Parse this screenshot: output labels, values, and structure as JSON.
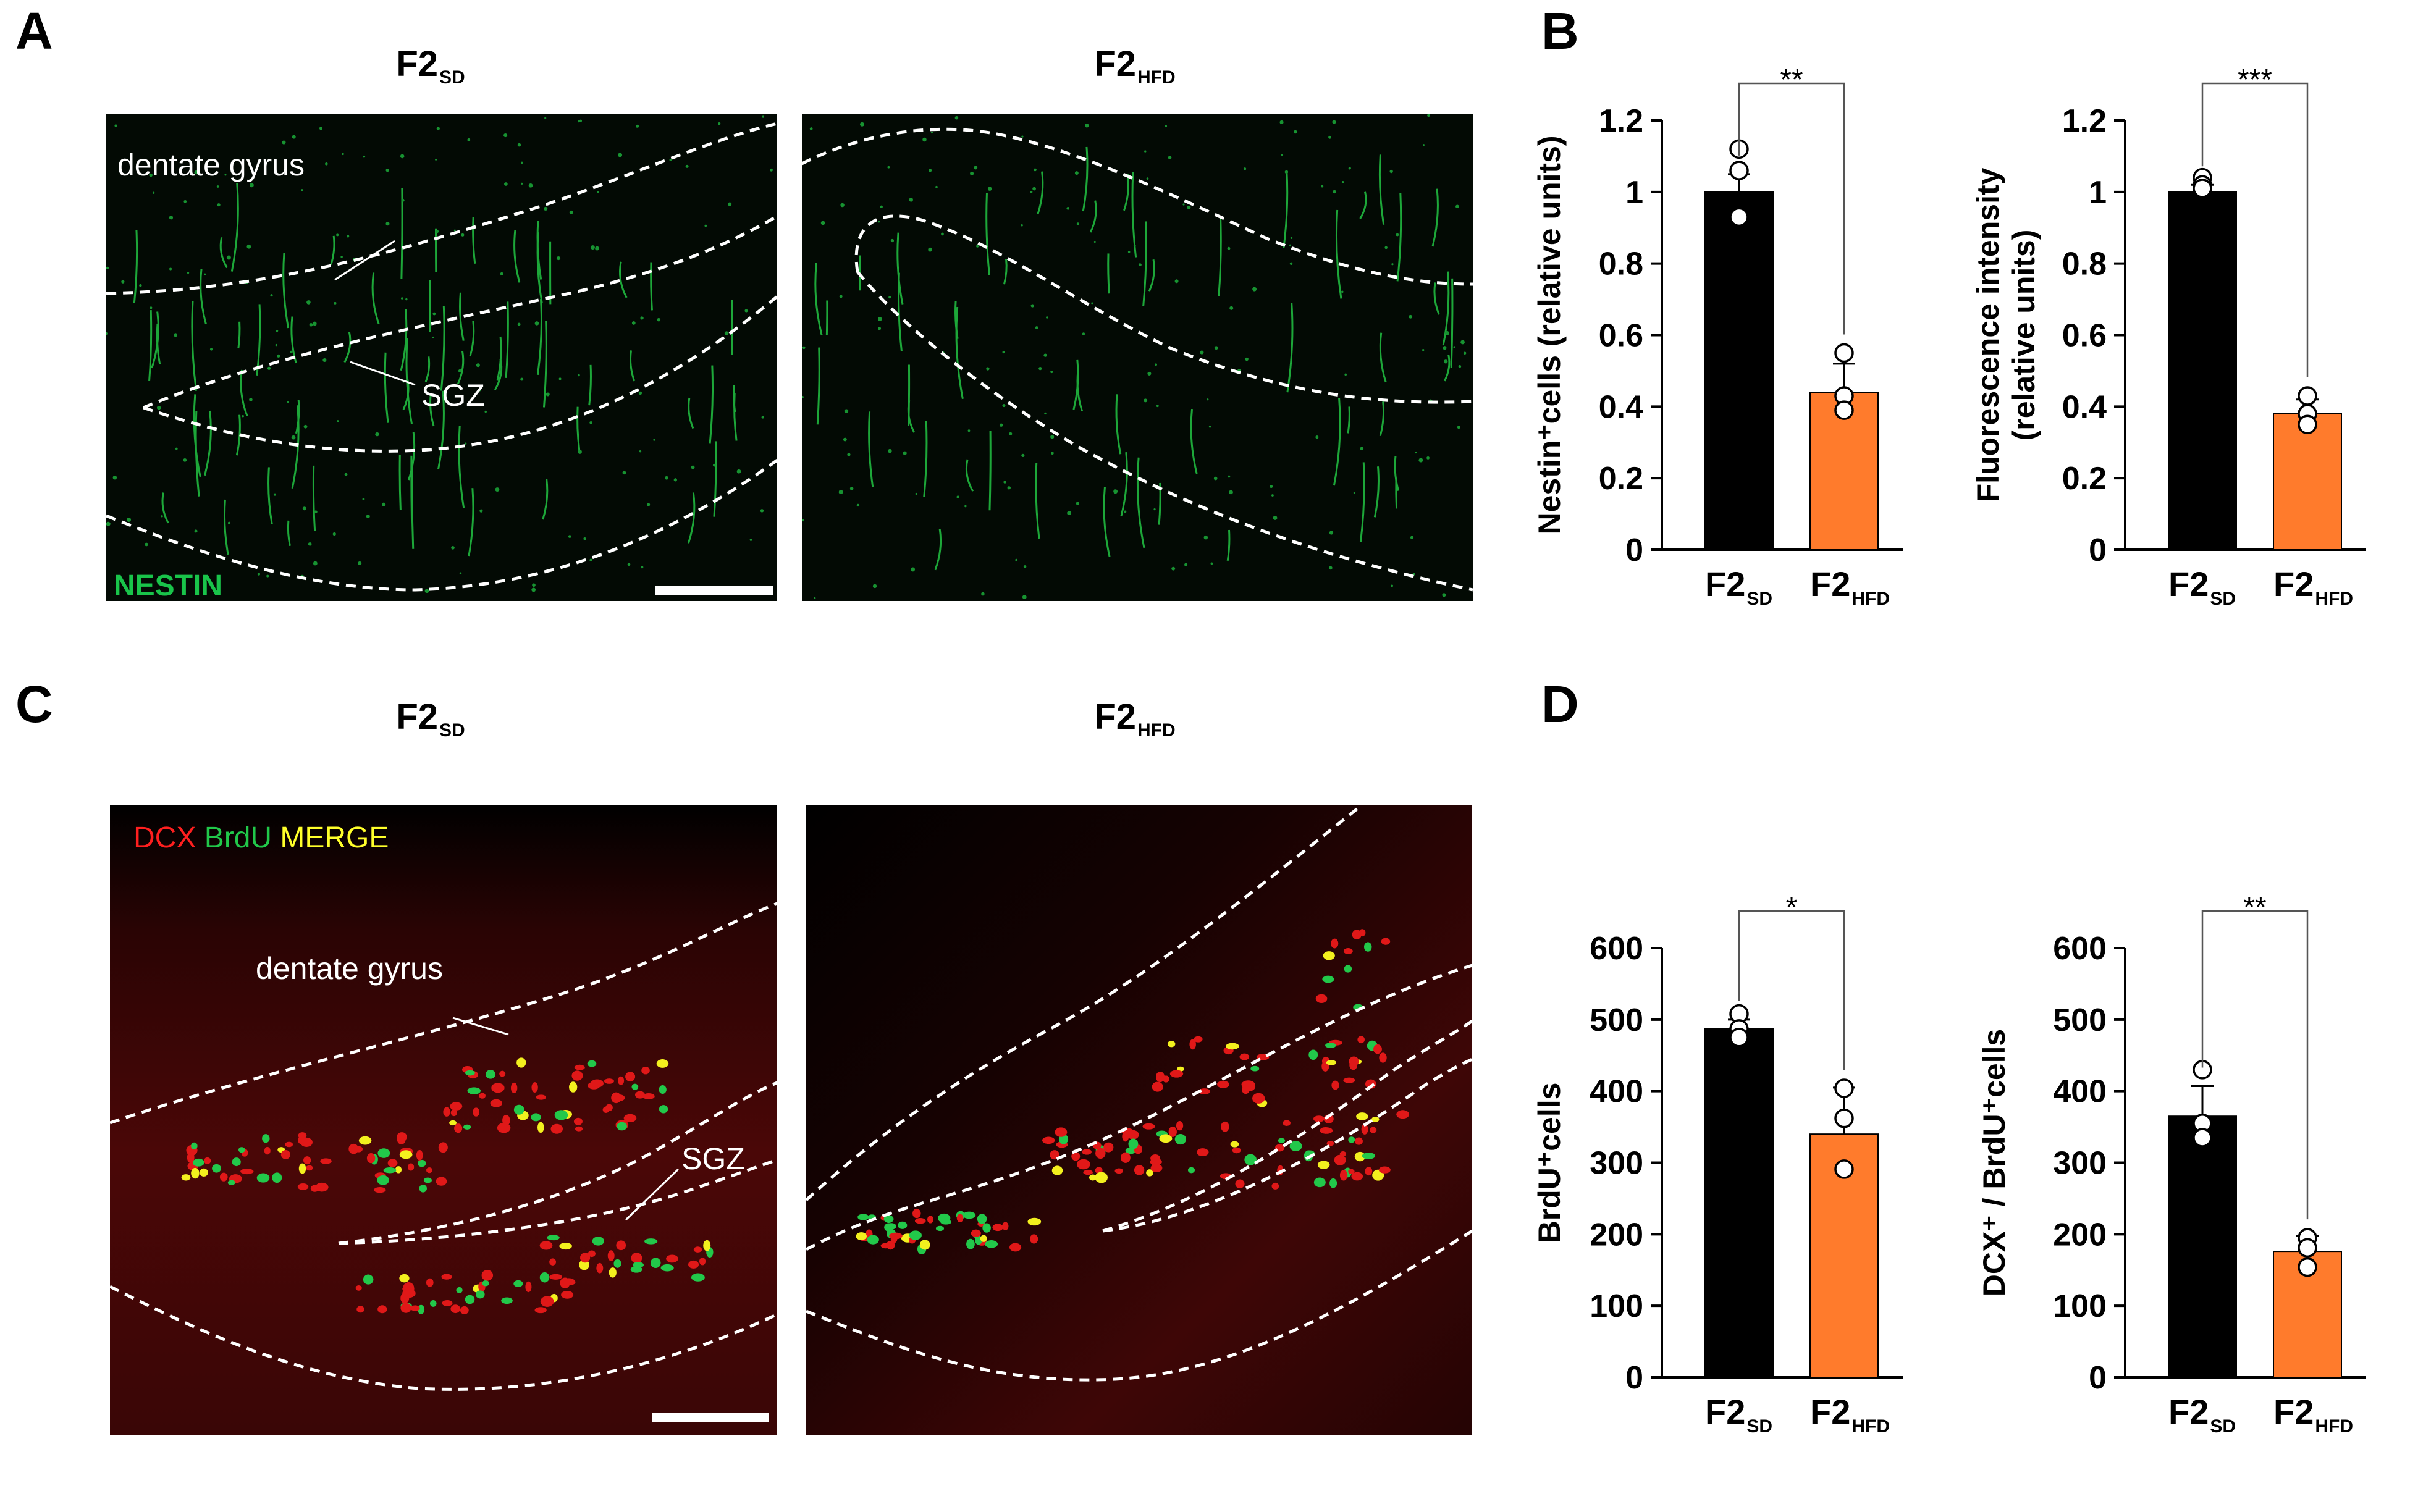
{
  "panels": {
    "A": {
      "letter": "A",
      "group_labels": [
        {
          "main": "F2",
          "sub": "SD"
        },
        {
          "main": "F2",
          "sub": "HFD"
        }
      ],
      "annotations": {
        "region": "dentate gyrus",
        "zone": "SGZ",
        "stain": "NESTIN"
      },
      "stain_color": "#19c44a"
    },
    "B": {
      "letter": "B"
    },
    "C": {
      "letter": "C",
      "group_labels": [
        {
          "main": "F2",
          "sub": "SD"
        },
        {
          "main": "F2",
          "sub": "HFD"
        }
      ],
      "annotations": {
        "region": "dentate gyrus",
        "zone": "SGZ"
      },
      "legend": [
        {
          "text": "DCX",
          "color": "#ff1f1f"
        },
        {
          "text": "BrdU",
          "color": "#21c84a"
        },
        {
          "text": "MERGE",
          "color": "#ffff2a"
        }
      ]
    },
    "D": {
      "letter": "D"
    }
  },
  "colors": {
    "sd_bar": "#000000",
    "hfd_bar": "#ff7b2c",
    "point_fill": "#ffffff"
  },
  "chart_data": [
    {
      "id": "nestin-cells",
      "panel": "B",
      "type": "bar",
      "ylabel": "Nestin⁺cells (relative units)",
      "ylim": [
        0,
        1.2
      ],
      "yticks": [
        0,
        0.2,
        0.4,
        0.6,
        0.8,
        1,
        1.2
      ],
      "ytick_labels": [
        "0",
        "0.2",
        "0.4",
        "0.6",
        "0.8",
        "1",
        "1.2"
      ],
      "categories": [
        {
          "main": "F2",
          "sub": "SD"
        },
        {
          "main": "F2",
          "sub": "HFD"
        }
      ],
      "values": [
        1.0,
        0.44
      ],
      "errors": [
        0.05,
        0.08
      ],
      "points": [
        [
          1.12,
          1.06,
          0.93
        ],
        [
          0.55,
          0.43,
          0.39
        ]
      ],
      "significance": "**"
    },
    {
      "id": "nestin-fluorescence",
      "panel": "B",
      "type": "bar",
      "ylabel": "Fluorescence intensity",
      "ylabel2": "(relative units)",
      "ylim": [
        0,
        1.2
      ],
      "yticks": [
        0,
        0.2,
        0.4,
        0.6,
        0.8,
        1,
        1.2
      ],
      "ytick_labels": [
        "0",
        "0.2",
        "0.4",
        "0.6",
        "0.8",
        "1",
        "1.2"
      ],
      "categories": [
        {
          "main": "F2",
          "sub": "SD"
        },
        {
          "main": "F2",
          "sub": "HFD"
        }
      ],
      "values": [
        1.0,
        0.38
      ],
      "errors": [
        0.02,
        0.04
      ],
      "points": [
        [
          1.04,
          1.02,
          1.01
        ],
        [
          0.43,
          0.38,
          0.35
        ]
      ],
      "significance": "***"
    },
    {
      "id": "brdu-cells",
      "panel": "D",
      "type": "bar",
      "ylabel": "BrdU⁺cells",
      "ylim": [
        0,
        600
      ],
      "yticks": [
        0,
        100,
        200,
        300,
        400,
        500,
        600
      ],
      "ytick_labels": [
        "0",
        "100",
        "200",
        "300",
        "400",
        "500",
        "600"
      ],
      "categories": [
        {
          "main": "F2",
          "sub": "SD"
        },
        {
          "main": "F2",
          "sub": "HFD"
        }
      ],
      "values": [
        487,
        340
      ],
      "errors": [
        13,
        65
      ],
      "points": [
        [
          508,
          487,
          475
        ],
        [
          404,
          362,
          291
        ]
      ],
      "significance": "*"
    },
    {
      "id": "dcx-brdu-cells",
      "panel": "D",
      "type": "bar",
      "ylabel": "DCX⁺ / BrdU⁺cells",
      "ylim": [
        0,
        600
      ],
      "yticks": [
        0,
        100,
        200,
        300,
        400,
        500,
        600
      ],
      "ytick_labels": [
        "0",
        "100",
        "200",
        "300",
        "400",
        "500",
        "600"
      ],
      "categories": [
        {
          "main": "F2",
          "sub": "SD"
        },
        {
          "main": "F2",
          "sub": "HFD"
        }
      ],
      "values": [
        365,
        176
      ],
      "errors": [
        42,
        22
      ],
      "points": [
        [
          430,
          355,
          335
        ],
        [
          195,
          181,
          154
        ]
      ],
      "significance": "**"
    }
  ]
}
